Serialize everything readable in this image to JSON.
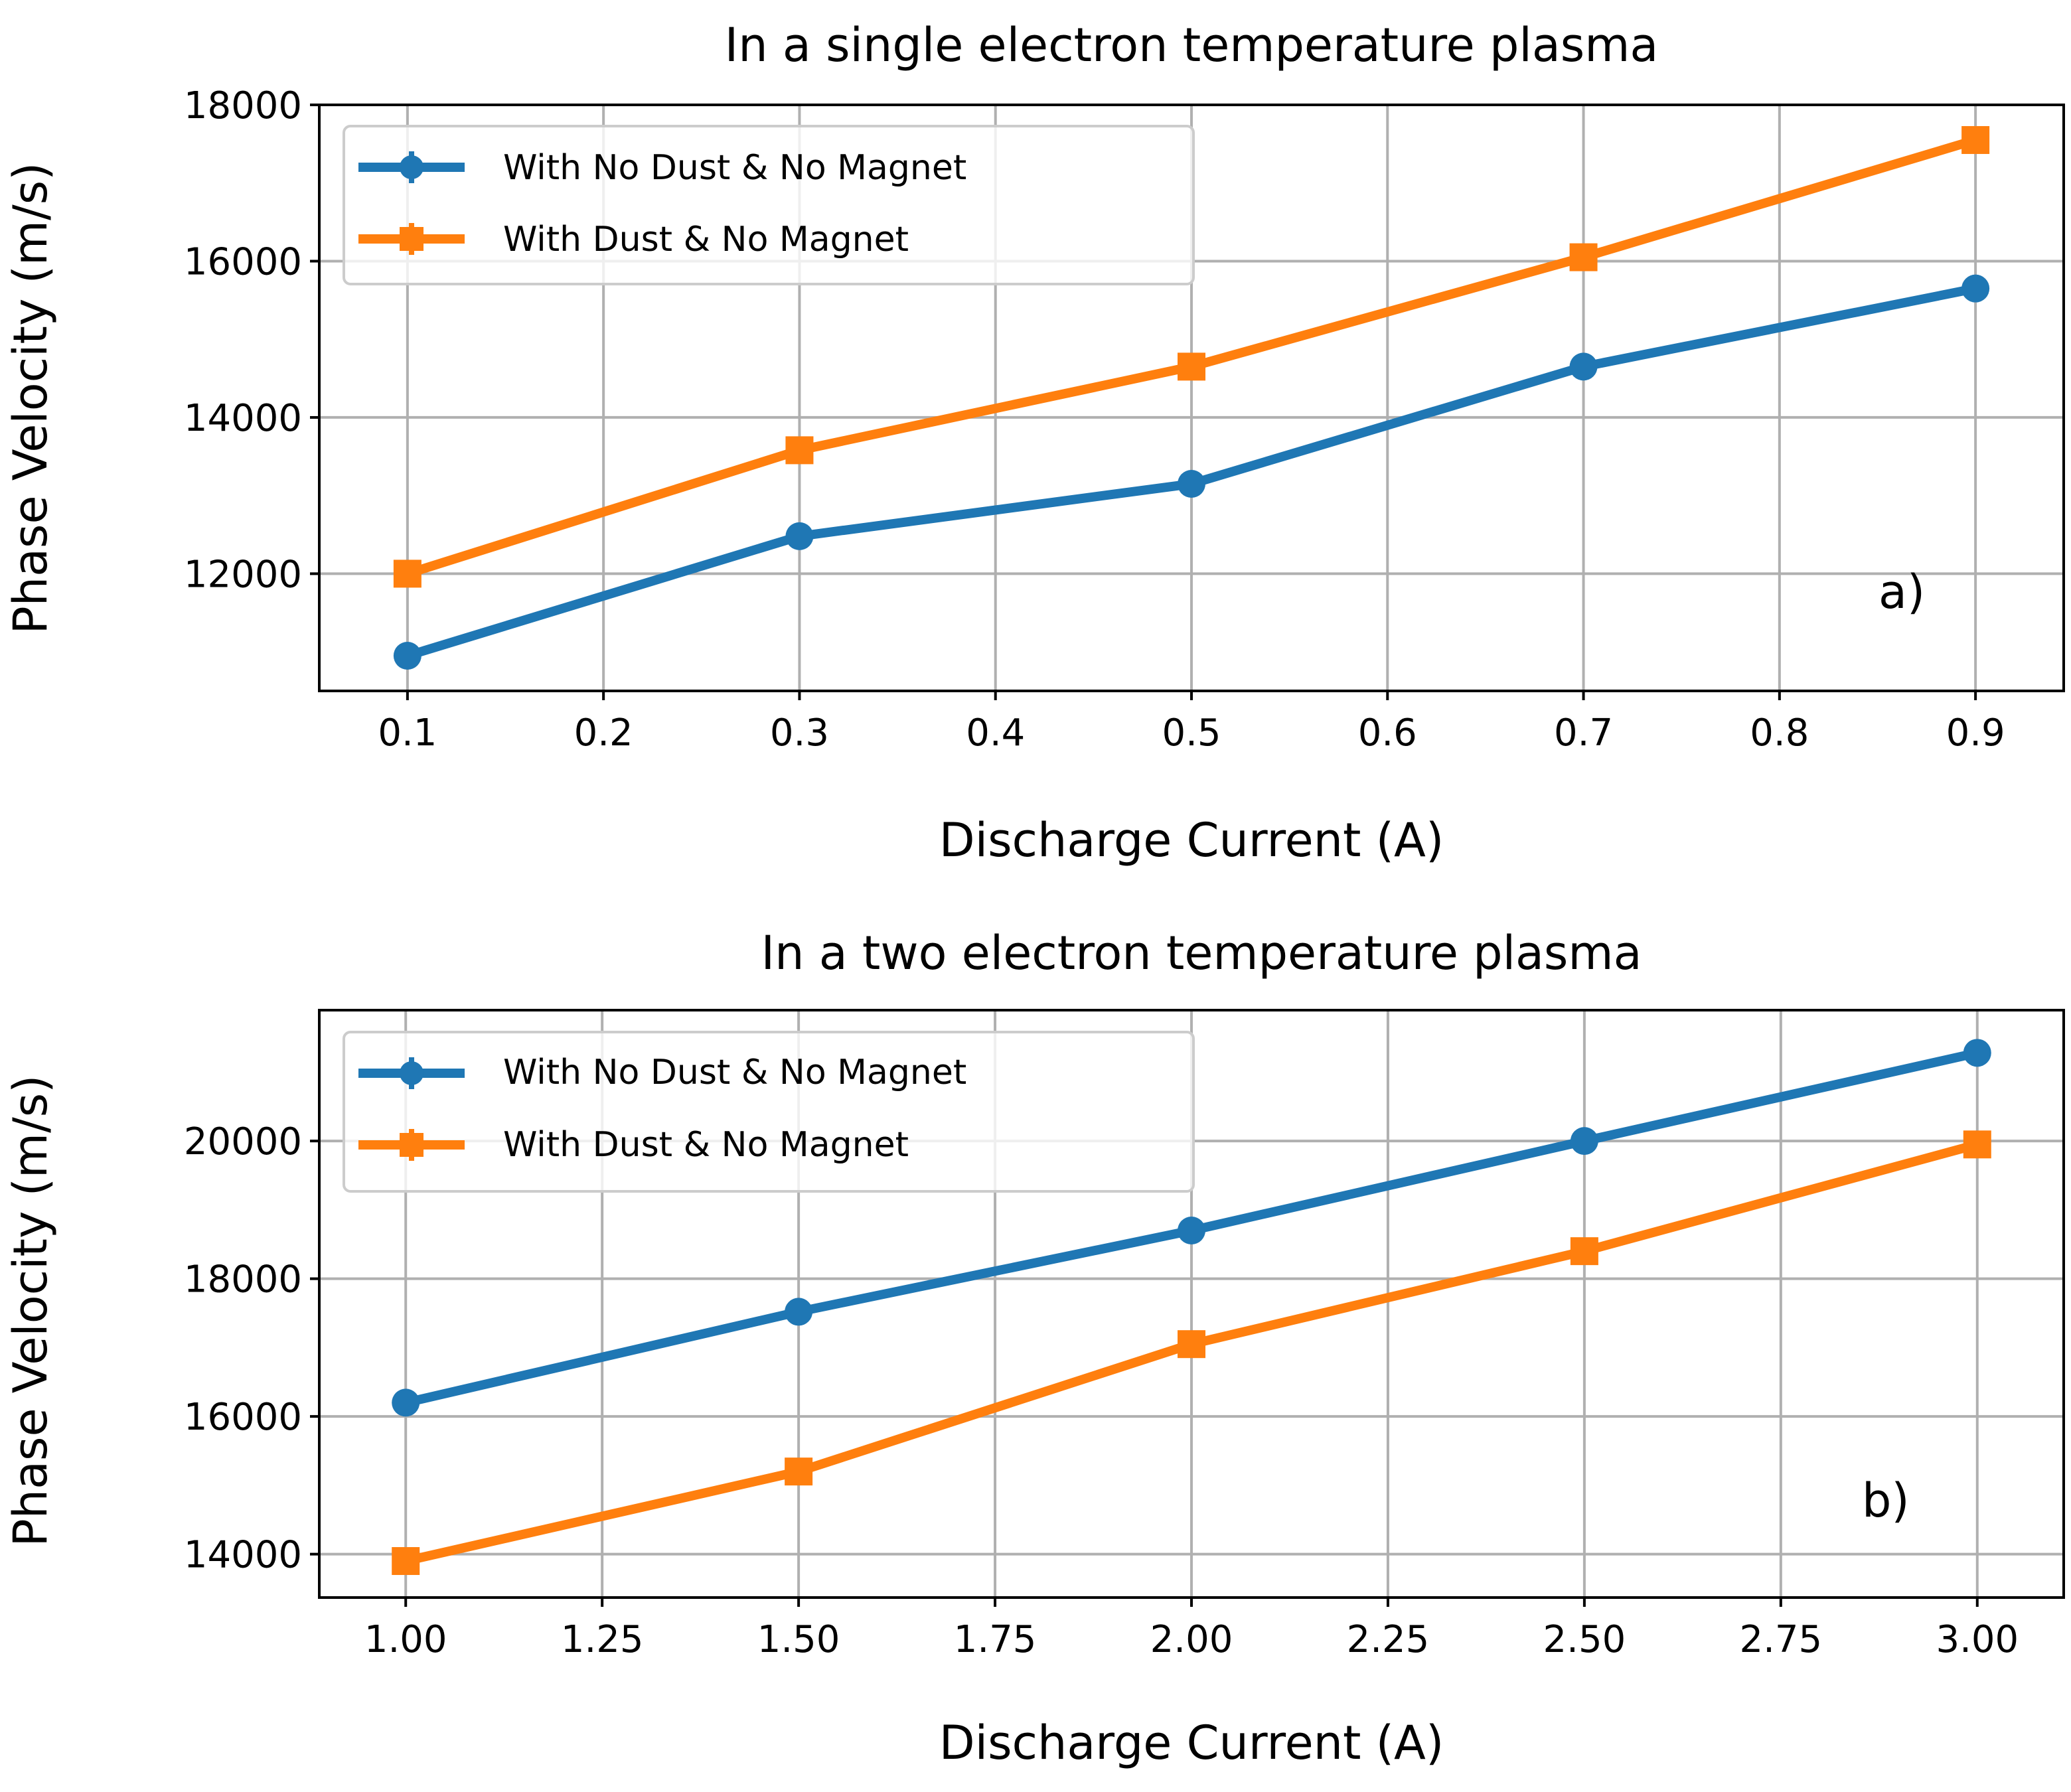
{
  "chart_data": [
    {
      "type": "line",
      "title": "In a single electron temperature plasma",
      "xlabel": "Discharge Current (A)",
      "ylabel": "Phase Velocity (m/s)",
      "panel_label": "a)",
      "x": [
        0.1,
        0.3,
        0.5,
        0.7,
        0.9
      ],
      "xlim": [
        0.055,
        0.945
      ],
      "ylim": [
        10500,
        18000
      ],
      "xticks": [
        0.1,
        0.2,
        0.3,
        0.4,
        0.5,
        0.6,
        0.7,
        0.8,
        0.9
      ],
      "xtick_labels": [
        "0.1",
        "0.2",
        "0.3",
        "0.4",
        "0.5",
        "0.6",
        "0.7",
        "0.8",
        "0.9"
      ],
      "yticks": [
        12000,
        14000,
        16000,
        18000
      ],
      "ytick_labels": [
        "12000",
        "14000",
        "16000",
        "18000"
      ],
      "grid": true,
      "legend_position": "top-left",
      "series": [
        {
          "name": "With No Dust & No Magnet",
          "color": "#1f77b4",
          "marker": "circle",
          "values": [
            10950,
            12480,
            13150,
            14650,
            15650
          ]
        },
        {
          "name": "With Dust & No Magnet",
          "color": "#ff7f0e",
          "marker": "square",
          "values": [
            12000,
            13580,
            14650,
            16050,
            17550
          ]
        }
      ]
    },
    {
      "type": "line",
      "title": "In a two electron temperature plasma",
      "xlabel": "Discharge Current (A)",
      "ylabel": "Phase Velocity (m/s)",
      "panel_label": "b)",
      "x": [
        1.0,
        1.5,
        2.0,
        2.5,
        3.0
      ],
      "xlim": [
        0.89,
        3.11
      ],
      "ylim": [
        13370,
        21900
      ],
      "xticks": [
        1.0,
        1.25,
        1.5,
        1.75,
        2.0,
        2.25,
        2.5,
        2.75,
        3.0
      ],
      "xtick_labels": [
        "1.00",
        "1.25",
        "1.50",
        "1.75",
        "2.00",
        "2.25",
        "2.50",
        "2.75",
        "3.00"
      ],
      "yticks": [
        14000,
        16000,
        18000,
        20000
      ],
      "ytick_labels": [
        "14000",
        "16000",
        "18000",
        "20000"
      ],
      "grid": true,
      "legend_position": "top-left",
      "series": [
        {
          "name": "With No Dust & No Magnet",
          "color": "#1f77b4",
          "marker": "circle",
          "values": [
            16200,
            17520,
            18700,
            20000,
            21280
          ]
        },
        {
          "name": "With Dust & No Magnet",
          "color": "#ff7f0e",
          "marker": "square",
          "values": [
            13900,
            15200,
            17050,
            18400,
            19950
          ]
        }
      ]
    }
  ]
}
